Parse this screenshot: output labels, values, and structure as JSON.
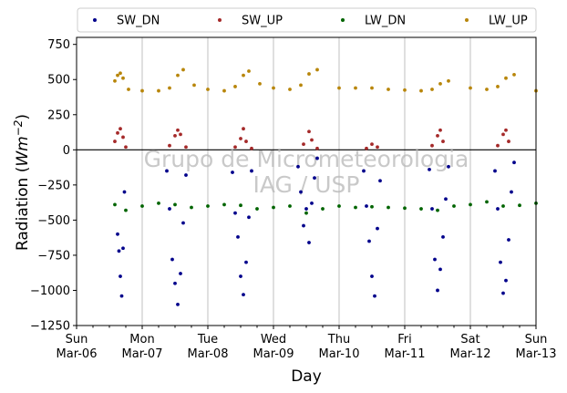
{
  "chart_data": {
    "type": "scatter",
    "xlabel": "Day",
    "ylabel_prefix": "Radiation (",
    "ylabel_unit": "Wm",
    "ylabel_exp": "−2",
    "ylabel_suffix": ")",
    "ylim": [
      -1250,
      800
    ],
    "xlim_days": [
      0,
      7
    ],
    "x_start_date": "2022-03-06",
    "x_ticks": [
      {
        "day": "Sun",
        "date": "Mar-06"
      },
      {
        "day": "Mon",
        "date": "Mar-07"
      },
      {
        "day": "Tue",
        "date": "Mar-08"
      },
      {
        "day": "Wed",
        "date": "Mar-09"
      },
      {
        "day": "Thu",
        "date": "Mar-10"
      },
      {
        "day": "Fri",
        "date": "Mar-11"
      },
      {
        "day": "Sat",
        "date": "Mar-12"
      },
      {
        "day": "Sun",
        "date": "Mar-13"
      }
    ],
    "y_ticks": [
      750,
      500,
      250,
      0,
      -250,
      -500,
      -750,
      -1000,
      -1250
    ],
    "y_tick_labels": [
      "750",
      "500",
      "250",
      "0",
      "−250",
      "−500",
      "−750",
      "−1000",
      "−1250"
    ],
    "grid": "vertical",
    "zero_line": true,
    "legend_position": "top",
    "watermark": [
      "Grupo de Micrometeorologia",
      "IAG / USP"
    ],
    "series": [
      {
        "name": "SW_DN",
        "color": "#00008b",
        "x": [
          "2022-03-06 15:00",
          "2022-03-06 15:30",
          "2022-03-06 16:00",
          "2022-03-06 16:30",
          "2022-03-06 17:00",
          "2022-03-06 17:30",
          "2022-03-07 09:00",
          "2022-03-07 10:00",
          "2022-03-07 11:00",
          "2022-03-07 12:00",
          "2022-03-07 13:00",
          "2022-03-07 14:00",
          "2022-03-07 15:00",
          "2022-03-07 16:00",
          "2022-03-08 09:00",
          "2022-03-08 10:00",
          "2022-03-08 11:00",
          "2022-03-08 12:00",
          "2022-03-08 13:00",
          "2022-03-08 14:00",
          "2022-03-08 15:00",
          "2022-03-08 16:00",
          "2022-03-09 09:00",
          "2022-03-09 10:00",
          "2022-03-09 11:00",
          "2022-03-09 12:00",
          "2022-03-09 13:00",
          "2022-03-09 14:00",
          "2022-03-09 15:00",
          "2022-03-09 16:00",
          "2022-03-10 09:00",
          "2022-03-10 10:00",
          "2022-03-10 11:00",
          "2022-03-10 12:00",
          "2022-03-10 13:00",
          "2022-03-10 14:00",
          "2022-03-10 15:00",
          "2022-03-11 09:00",
          "2022-03-11 10:00",
          "2022-03-11 11:00",
          "2022-03-11 12:00",
          "2022-03-11 13:00",
          "2022-03-11 14:00",
          "2022-03-11 15:00",
          "2022-03-11 16:00",
          "2022-03-12 09:00",
          "2022-03-12 10:00",
          "2022-03-12 11:00",
          "2022-03-12 12:00",
          "2022-03-12 13:00",
          "2022-03-12 14:00",
          "2022-03-12 15:00",
          "2022-03-12 16:00"
        ],
        "values": [
          -600,
          -720,
          -900,
          -1040,
          -700,
          -300,
          -150,
          -420,
          -780,
          -950,
          -1100,
          -880,
          -520,
          -180,
          -160,
          -450,
          -620,
          -900,
          -1030,
          -800,
          -480,
          -150,
          -120,
          -300,
          -540,
          -420,
          -660,
          -380,
          -200,
          -60,
          -150,
          -400,
          -650,
          -900,
          -1040,
          -560,
          -220,
          -140,
          -420,
          -780,
          -1000,
          -850,
          -620,
          -350,
          -120,
          -150,
          -420,
          -800,
          -1020,
          -930,
          -640,
          -300,
          -90
        ]
      },
      {
        "name": "SW_UP",
        "color": "#a52a2a",
        "x": [
          "2022-03-06 14:00",
          "2022-03-06 15:00",
          "2022-03-06 16:00",
          "2022-03-06 17:00",
          "2022-03-06 18:00",
          "2022-03-07 10:00",
          "2022-03-07 12:00",
          "2022-03-07 13:00",
          "2022-03-07 14:00",
          "2022-03-07 16:00",
          "2022-03-08 10:00",
          "2022-03-08 12:00",
          "2022-03-08 13:00",
          "2022-03-08 14:00",
          "2022-03-08 16:00",
          "2022-03-09 11:00",
          "2022-03-09 13:00",
          "2022-03-09 14:00",
          "2022-03-09 16:00",
          "2022-03-10 10:00",
          "2022-03-10 12:00",
          "2022-03-10 14:00",
          "2022-03-11 10:00",
          "2022-03-11 12:00",
          "2022-03-11 13:00",
          "2022-03-11 14:00",
          "2022-03-12 10:00",
          "2022-03-12 12:00",
          "2022-03-12 13:00",
          "2022-03-12 14:00"
        ],
        "values": [
          60,
          120,
          150,
          90,
          20,
          30,
          100,
          140,
          110,
          20,
          20,
          80,
          150,
          60,
          10,
          40,
          130,
          70,
          10,
          10,
          40,
          20,
          30,
          100,
          140,
          60,
          30,
          110,
          140,
          60
        ]
      },
      {
        "name": "LW_DN",
        "color": "#006400",
        "x": [
          "2022-03-06 14:00",
          "2022-03-06 18:00",
          "2022-03-07 00:00",
          "2022-03-07 06:00",
          "2022-03-07 12:00",
          "2022-03-07 18:00",
          "2022-03-08 00:00",
          "2022-03-08 06:00",
          "2022-03-08 12:00",
          "2022-03-08 18:00",
          "2022-03-09 00:00",
          "2022-03-09 06:00",
          "2022-03-09 12:00",
          "2022-03-09 18:00",
          "2022-03-10 00:00",
          "2022-03-10 06:00",
          "2022-03-10 12:00",
          "2022-03-10 18:00",
          "2022-03-11 00:00",
          "2022-03-11 06:00",
          "2022-03-11 12:00",
          "2022-03-11 18:00",
          "2022-03-12 00:00",
          "2022-03-12 06:00",
          "2022-03-12 12:00",
          "2022-03-12 18:00",
          "2022-03-13 00:00"
        ],
        "values": [
          -390,
          -430,
          -400,
          -380,
          -390,
          -410,
          -400,
          -390,
          -395,
          -420,
          -410,
          -400,
          -450,
          -420,
          -400,
          -410,
          -405,
          -410,
          -415,
          -420,
          -430,
          -400,
          -390,
          -370,
          -400,
          -395,
          -380
        ]
      },
      {
        "name": "LW_UP",
        "color": "#b8860b",
        "x": [
          "2022-03-06 14:00",
          "2022-03-06 15:00",
          "2022-03-06 16:00",
          "2022-03-06 17:00",
          "2022-03-06 19:00",
          "2022-03-07 00:00",
          "2022-03-07 06:00",
          "2022-03-07 10:00",
          "2022-03-07 13:00",
          "2022-03-07 15:00",
          "2022-03-07 19:00",
          "2022-03-08 00:00",
          "2022-03-08 06:00",
          "2022-03-08 10:00",
          "2022-03-08 13:00",
          "2022-03-08 15:00",
          "2022-03-08 19:00",
          "2022-03-09 00:00",
          "2022-03-09 06:00",
          "2022-03-09 10:00",
          "2022-03-09 13:00",
          "2022-03-09 16:00",
          "2022-03-10 00:00",
          "2022-03-10 06:00",
          "2022-03-10 12:00",
          "2022-03-10 18:00",
          "2022-03-11 00:00",
          "2022-03-11 06:00",
          "2022-03-11 10:00",
          "2022-03-11 13:00",
          "2022-03-11 16:00",
          "2022-03-12 00:00",
          "2022-03-12 06:00",
          "2022-03-12 10:00",
          "2022-03-12 13:00",
          "2022-03-12 16:00",
          "2022-03-13 00:00"
        ],
        "values": [
          490,
          530,
          545,
          510,
          430,
          420,
          420,
          440,
          530,
          570,
          460,
          430,
          420,
          450,
          530,
          560,
          470,
          440,
          430,
          460,
          540,
          570,
          440,
          440,
          440,
          430,
          425,
          420,
          430,
          470,
          490,
          440,
          430,
          450,
          510,
          535,
          420
        ]
      }
    ]
  }
}
